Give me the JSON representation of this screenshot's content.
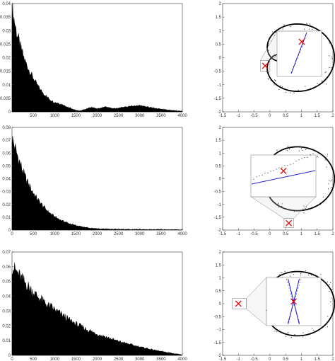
{
  "colors": {
    "fill": "#000000",
    "axis": "#333333",
    "curve": "#000000",
    "inset_box": "#888888",
    "fit_line": "#1f1fd6",
    "marker": "#dd1111"
  },
  "chart_data": [
    {
      "type": "area",
      "title": "",
      "xlabel": "",
      "ylabel": "",
      "xlim": [
        0,
        4000
      ],
      "ylim": [
        0,
        0.04
      ],
      "xticks": [
        "500",
        "1000",
        "1500",
        "2000",
        "2500",
        "3000",
        "3500",
        "4000"
      ],
      "yticks": [
        "0",
        "0.005",
        "0.01",
        "0.015",
        "0.02",
        "0.025",
        "0.03",
        "0.035",
        "0.04"
      ],
      "series": [
        {
          "x": [
            0,
            100,
            200,
            300,
            400,
            500,
            600,
            700,
            800,
            900,
            1000,
            1100,
            1200,
            1300,
            1400,
            1500,
            1600,
            1700,
            1800,
            1900,
            2000,
            2200,
            2400,
            2600,
            2800,
            3000,
            3200,
            3400,
            3600,
            3800,
            4000
          ],
          "y": [
            0.0385,
            0.03,
            0.024,
            0.019,
            0.0155,
            0.0125,
            0.0098,
            0.0075,
            0.0058,
            0.0044,
            0.0035,
            0.0032,
            0.0026,
            0.0018,
            0.0012,
            0.0006,
            0.0004,
            0.0009,
            0.0014,
            0.0016,
            0.0011,
            0.0018,
            0.0012,
            0.0017,
            0.0021,
            0.0024,
            0.0018,
            0.0012,
            0.0009,
            0.0005,
            0.0003
          ]
        }
      ]
    },
    {
      "type": "area",
      "title": "",
      "xlabel": "",
      "ylabel": "",
      "xlim": [
        0,
        4000
      ],
      "ylim": [
        0,
        0.08
      ],
      "xticks": [
        "0",
        "500",
        "1000",
        "1500",
        "2000",
        "2500",
        "3000",
        "3500",
        "4000"
      ],
      "yticks": [
        "0",
        "0.01",
        "0.02",
        "0.03",
        "0.04",
        "0.05",
        "0.06",
        "0.07",
        "0.08"
      ],
      "series": [
        {
          "x": [
            0,
            100,
            200,
            300,
            400,
            500,
            600,
            700,
            800,
            900,
            1000,
            1200,
            1400,
            1600,
            1800,
            2000,
            2500,
            3000,
            3500,
            4000
          ],
          "y": [
            0.072,
            0.061,
            0.051,
            0.042,
            0.035,
            0.029,
            0.024,
            0.02,
            0.016,
            0.013,
            0.0105,
            0.007,
            0.0045,
            0.0028,
            0.0017,
            0.0011,
            0.0006,
            0.0005,
            0.0004,
            0.0003
          ]
        }
      ]
    },
    {
      "type": "area",
      "title": "",
      "xlabel": "",
      "ylabel": "",
      "xlim": [
        0,
        4000
      ],
      "ylim": [
        0,
        0.07
      ],
      "xticks": [
        "0",
        "500",
        "1000",
        "1500",
        "2000",
        "2500",
        "3000",
        "3500",
        "4000"
      ],
      "yticks": [
        "0",
        "0.01",
        "0.02",
        "0.03",
        "0.04",
        "0.05",
        "0.06",
        "0.07"
      ],
      "series": [
        {
          "x": [
            0,
            100,
            200,
            400,
            600,
            800,
            1000,
            1200,
            1400,
            1600,
            1800,
            2000,
            2200,
            2400,
            2600,
            2800,
            3000,
            3200,
            3400,
            3600,
            3800,
            4000
          ],
          "y": [
            0.06,
            0.057,
            0.053,
            0.046,
            0.04,
            0.035,
            0.031,
            0.027,
            0.023,
            0.02,
            0.017,
            0.0145,
            0.0125,
            0.0105,
            0.0088,
            0.0073,
            0.0058,
            0.0045,
            0.0033,
            0.0022,
            0.0012,
            0.0004
          ]
        }
      ]
    },
    {
      "type": "scatter",
      "title": "",
      "xlabel": "",
      "ylabel": "",
      "xlim": [
        -1.5,
        2
      ],
      "ylim": [
        -2,
        2
      ],
      "xticks": [
        "-1.5",
        "-1",
        "-0.5",
        "0",
        "0.5",
        "1",
        "1.5",
        "2"
      ],
      "yticks": [
        "-2",
        "-1.5",
        "-1",
        "-0.5",
        "0",
        "0.5",
        "1",
        "1.5",
        "2"
      ],
      "marker_point": [
        -0.15,
        -0.3
      ],
      "zoom_region": {
        "x": [
          -0.3,
          0.0
        ],
        "y": [
          -0.5,
          -0.1
        ]
      }
    },
    {
      "type": "scatter",
      "title": "",
      "xlabel": "",
      "ylabel": "",
      "xlim": [
        -1.5,
        2
      ],
      "ylim": [
        -2,
        2
      ],
      "xticks": [
        "-1.5",
        "-1",
        "-0.5",
        "0",
        "0.5",
        "1",
        "1.5",
        "2"
      ],
      "yticks": [
        "-2",
        "-1.5",
        "-1",
        "-0.5",
        "0",
        "0.5",
        "1",
        "1.5",
        "2"
      ],
      "marker_point": [
        0.6,
        -1.73
      ],
      "zoom_region": {
        "x": [
          0.45,
          0.75
        ],
        "y": [
          -1.9,
          -1.55
        ]
      }
    },
    {
      "type": "scatter",
      "title": "",
      "xlabel": "",
      "ylabel": "",
      "xlim": [
        -1.5,
        2
      ],
      "ylim": [
        -2,
        2
      ],
      "xticks": [
        "-1.5",
        "-1",
        "-0.5",
        "0",
        "0.5",
        "1",
        "1.5",
        "2"
      ],
      "yticks": [
        "-2",
        "-1.5",
        "-1",
        "-0.5",
        "0",
        "0.5",
        "1",
        "1.5",
        "2"
      ],
      "marker_point": [
        -1.0,
        0.0
      ],
      "zoom_region": {
        "x": [
          -1.2,
          -0.75
        ],
        "y": [
          -0.2,
          0.2
        ]
      }
    }
  ]
}
